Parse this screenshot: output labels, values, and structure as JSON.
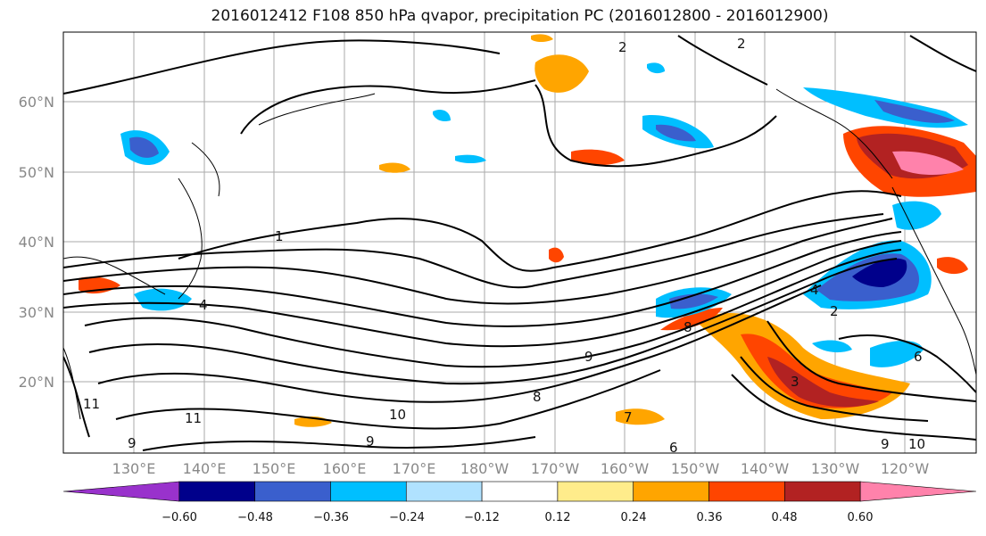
{
  "title": "2016012412 F108 850 hPa qvapor, precipitation PC (2016012800 - 2016012900)",
  "map": {
    "lat_labels": [
      "60°N",
      "50°N",
      "40°N",
      "30°N",
      "20°N"
    ],
    "lon_labels": [
      "130°E",
      "140°E",
      "150°E",
      "160°E",
      "170°E",
      "180°W",
      "170°W",
      "160°W",
      "150°W",
      "140°W",
      "130°W",
      "120°W"
    ],
    "contour_labels": [
      "1",
      "2",
      "2",
      "2",
      "3",
      "4",
      "4",
      "6",
      "6",
      "7",
      "8",
      "8",
      "9",
      "9",
      "9",
      "9",
      "10",
      "11",
      "11",
      "10"
    ]
  },
  "colorbar": {
    "colors": [
      "#9932cc",
      "#00008b",
      "#3a5fcd",
      "#00bfff",
      "#b0e2ff",
      "#ffffff",
      "#ffec8b",
      "#ffa500",
      "#ff4500",
      "#b22222",
      "#ff82ab"
    ],
    "tick_labels": [
      "−0.60",
      "−0.48",
      "−0.36",
      "−0.24",
      "−0.12",
      "0.12",
      "0.24",
      "0.36",
      "0.48",
      "0.60"
    ]
  }
}
